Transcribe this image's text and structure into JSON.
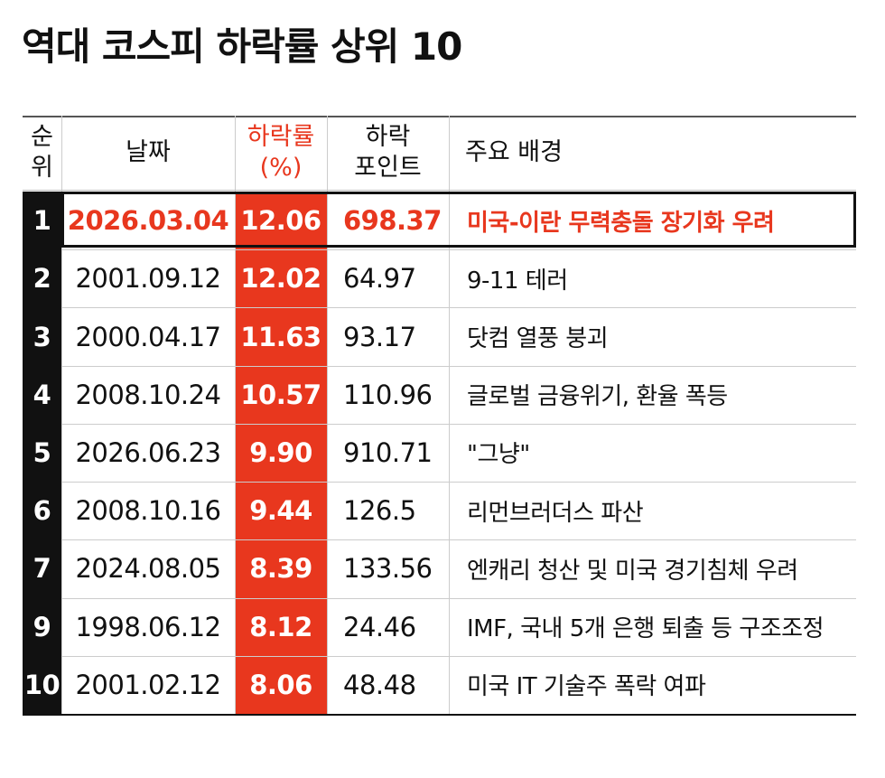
{
  "header": {
    "title": "역대 코스피 하락률 상위 10"
  },
  "table": {
    "headers": [
      "순\n위",
      "날짜",
      "하락률\n(%)",
      "하락\n포인트",
      "주요 배경"
    ],
    "rows": [
      [
        "1",
        "2026.03.04",
        "12.06",
        "698.37",
        "미국-이란 무력충돌 장기화 우려"
      ],
      [
        "2",
        "2001.09.12",
        "12.02",
        "64.97",
        "9-11 테러"
      ],
      [
        "3",
        "2000.04.17",
        "11.63",
        "93.17",
        "닷컴 열풍 붕괴"
      ],
      [
        "4",
        "2008.10.24",
        "10.57",
        "110.96",
        "글로벌 금융위기, 환율 폭등"
      ],
      [
        "5",
        "2026.06.23",
        "9.90",
        "910.71",
        "\"그냥\""
      ],
      [
        "6",
        "2008.10.16",
        "9.44",
        "126.5",
        "리먼브러더스 파산"
      ],
      [
        "7",
        "2024.08.05",
        "8.39",
        "133.56",
        "엔캐리 청산 및 미국 경기침체 우려"
      ],
      [
        "9",
        "1998.06.12",
        "8.12",
        "24.46",
        "IMF, 국내 5개 은행 퇴출 등 구조조정"
      ],
      [
        "10",
        "2001.02.12",
        "8.06",
        "48.48",
        "미국 IT 기술주 폭락 여파"
      ]
    ]
  }
}
